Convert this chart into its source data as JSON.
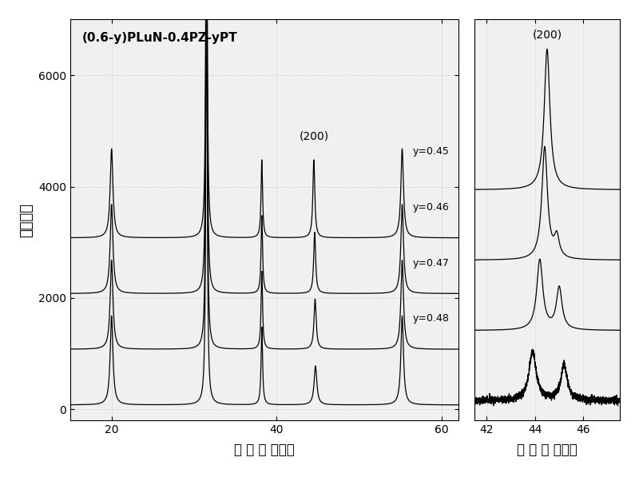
{
  "title": "(0.6-y)PLuN-0.4PZ-yPT",
  "ylabel": "衍射强度",
  "xlabel1": "衍 射 角 （度）",
  "xlabel2": "衍 射 角 （度）",
  "annotation1": "(200)",
  "annotation2": "(200)",
  "series_labels": [
    "y=0.45",
    "y=0.46",
    "y=0.47",
    "y=0.48"
  ],
  "offsets": [
    3000,
    2000,
    1000,
    0
  ],
  "xlim1": [
    15,
    62
  ],
  "xlim2": [
    41.5,
    47.5
  ],
  "ylim1": [
    -200,
    7000
  ],
  "ylim2": [
    -200,
    5500
  ],
  "xticks1": [
    20,
    40,
    60
  ],
  "xticks2": [
    42,
    44,
    46
  ],
  "yticks1": [
    0,
    2000,
    4000,
    6000
  ],
  "background_color": "#ffffff",
  "line_color": "#000000"
}
